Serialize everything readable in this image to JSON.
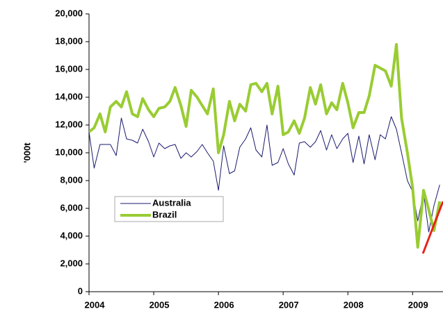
{
  "chart_data": {
    "type": "line",
    "y_label": "'000t",
    "x": [
      2004,
      2004.08,
      2004.17,
      2004.25,
      2004.33,
      2004.42,
      2004.5,
      2004.58,
      2004.67,
      2004.75,
      2004.83,
      2004.92,
      2005,
      2005.08,
      2005.17,
      2005.25,
      2005.33,
      2005.42,
      2005.5,
      2005.58,
      2005.67,
      2005.75,
      2005.83,
      2005.92,
      2006,
      2006.08,
      2006.17,
      2006.25,
      2006.33,
      2006.42,
      2006.5,
      2006.58,
      2006.67,
      2006.75,
      2006.83,
      2006.92,
      2007,
      2007.08,
      2007.17,
      2007.25,
      2007.33,
      2007.42,
      2007.5,
      2007.58,
      2007.67,
      2007.75,
      2007.83,
      2007.92,
      2008,
      2008.08,
      2008.17,
      2008.25,
      2008.33,
      2008.42,
      2008.5,
      2008.58,
      2008.67,
      2008.75,
      2008.83,
      2008.92,
      2009,
      2009.08,
      2009.17,
      2009.25,
      2009.33,
      2009.42
    ],
    "series": [
      {
        "name": "Australia",
        "color": "#1a1a6e",
        "width": 1,
        "values": [
          11500,
          8900,
          10600,
          10600,
          10600,
          9800,
          12500,
          11000,
          10900,
          10700,
          11700,
          10800,
          9700,
          10700,
          10300,
          10500,
          10600,
          9600,
          10000,
          9700,
          10100,
          10600,
          10000,
          9400,
          7300,
          10500,
          8500,
          8700,
          10400,
          11000,
          11800,
          10200,
          9700,
          12000,
          9100,
          9300,
          10300,
          9200,
          8400,
          10700,
          10800,
          10400,
          10800,
          11600,
          10200,
          11300,
          10300,
          11000,
          11400,
          9300,
          11200,
          9200,
          11300,
          9500,
          11300,
          11000,
          12600,
          11700,
          10000,
          8000,
          7200,
          5100,
          7100,
          4300,
          6200,
          7700
        ]
      },
      {
        "name": "Brazil",
        "color": "#99cc33",
        "width": 4,
        "values": [
          11500,
          11800,
          12800,
          11500,
          13300,
          13700,
          13300,
          14400,
          12800,
          12600,
          13900,
          13100,
          12600,
          13200,
          13300,
          13700,
          14700,
          13400,
          11900,
          14500,
          14000,
          13400,
          12800,
          14600,
          10000,
          11300,
          13700,
          12300,
          13500,
          13000,
          14900,
          15000,
          14400,
          15000,
          12800,
          14800,
          11300,
          11500,
          12300,
          11400,
          12500,
          14700,
          13500,
          14900,
          12800,
          13600,
          13100,
          15000,
          13600,
          11800,
          12900,
          12900,
          14100,
          16300,
          16100,
          15900,
          14800,
          17800,
          12500,
          10000,
          7500,
          3200,
          7300,
          5900,
          4400,
          6500
        ]
      }
    ],
    "trend": {
      "color": "#e8221c",
      "x": [
        2009.16,
        2009.47
      ],
      "values": [
        2750,
        6500
      ]
    },
    "xlim": [
      2004,
      2009.47
    ],
    "xticks": [
      2004,
      2005,
      2006,
      2007,
      2008,
      2009
    ],
    "ylim": [
      0,
      20000
    ],
    "yticks": [
      0,
      {
        "value": 2000,
        "label": "2,000"
      },
      {
        "value": 4000,
        "label": "4,000"
      },
      {
        "value": 6000,
        "label": "6,000"
      },
      {
        "value": 8000,
        "label": "8,000"
      },
      {
        "value": 10000,
        "label": "10,000"
      },
      {
        "value": 12000,
        "label": "12,000"
      },
      {
        "value": 14000,
        "label": "14,000"
      },
      {
        "value": 16000,
        "label": "16,000"
      },
      {
        "value": 18000,
        "label": "18,000"
      },
      {
        "value": 20000,
        "label": "20,000"
      }
    ],
    "legend": "lower-left"
  }
}
